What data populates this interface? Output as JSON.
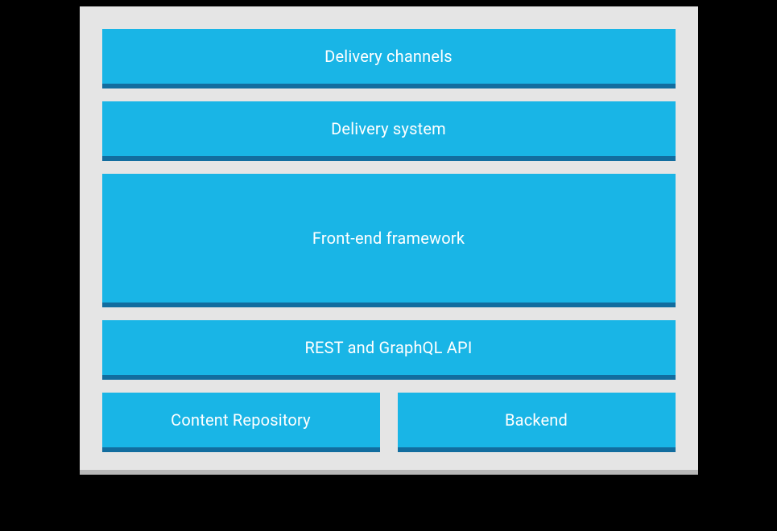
{
  "diagram": {
    "type": "layered-architecture",
    "panel_background": "#e5e5e5",
    "panel_shadow": "#b8b8b8",
    "page_background": "#000000",
    "box_fill": "#19b5e6",
    "box_shadow": "#126d9f",
    "text_color": "#ffffff",
    "font_size": 20,
    "gap": 22,
    "layers": [
      {
        "type": "single",
        "height": "thin",
        "label": "Delivery channels"
      },
      {
        "type": "single",
        "height": "thin",
        "label": "Delivery system"
      },
      {
        "type": "single",
        "height": "tall",
        "label": "Front-end framework"
      },
      {
        "type": "single",
        "height": "thin",
        "label": "REST and GraphQL API"
      },
      {
        "type": "pair",
        "height": "thin",
        "labels": [
          "Content Repository",
          "Backend"
        ]
      }
    ]
  }
}
